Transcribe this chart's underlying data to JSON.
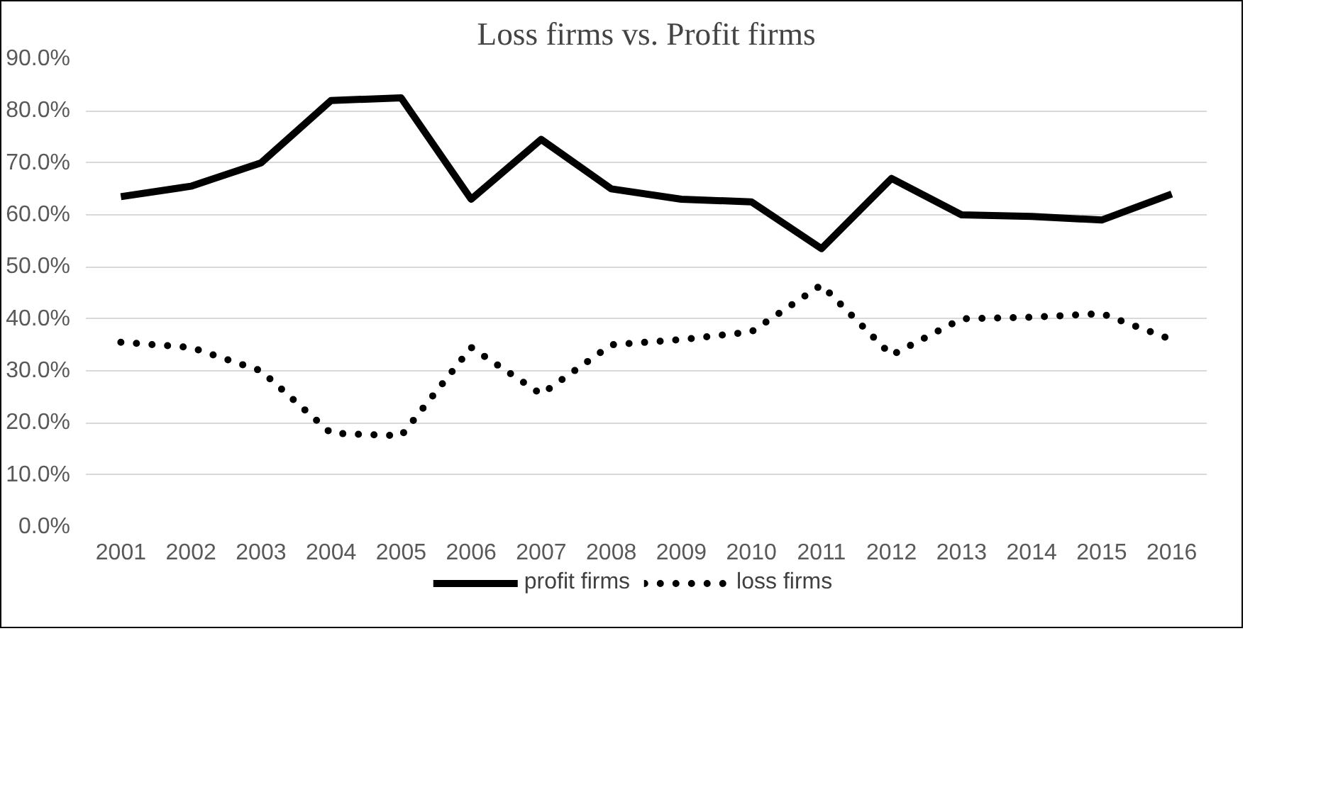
{
  "chart_data": {
    "type": "line",
    "title": "Loss firms vs. Profit firms",
    "categories": [
      "2001",
      "2002",
      "2003",
      "2004",
      "2005",
      "2006",
      "2007",
      "2008",
      "2009",
      "2010",
      "2011",
      "2012",
      "2013",
      "2014",
      "2015",
      "2016"
    ],
    "series": [
      {
        "name": "profit firms",
        "color": "#000000",
        "line_style": "solid",
        "values": [
          63.5,
          65.5,
          70,
          82,
          82.5,
          63,
          74.5,
          65,
          63,
          62.5,
          53.5,
          67,
          60,
          59.7,
          59,
          64
        ]
      },
      {
        "name": "loss firms",
        "color": "#000000",
        "line_style": "dotted",
        "values": [
          35.5,
          34.5,
          30,
          18,
          17.5,
          34.5,
          25.5,
          35,
          36,
          37.5,
          46.5,
          33,
          40,
          40.3,
          41,
          36
        ]
      }
    ],
    "ylim": [
      0,
      90
    ],
    "yticks": [
      {
        "value": 0,
        "label": "0.0%"
      },
      {
        "value": 10,
        "label": "10.0%"
      },
      {
        "value": 20,
        "label": "20.0%"
      },
      {
        "value": 30,
        "label": "30.0%"
      },
      {
        "value": 40,
        "label": "40.0%"
      },
      {
        "value": 50,
        "label": "50.0%"
      },
      {
        "value": 60,
        "label": "60.0%"
      },
      {
        "value": 70,
        "label": "70.0%"
      },
      {
        "value": 80,
        "label": "80.0%"
      },
      {
        "value": 90,
        "label": "90.0%"
      }
    ],
    "grid": "y",
    "legend": "bottom",
    "marker": "none"
  }
}
